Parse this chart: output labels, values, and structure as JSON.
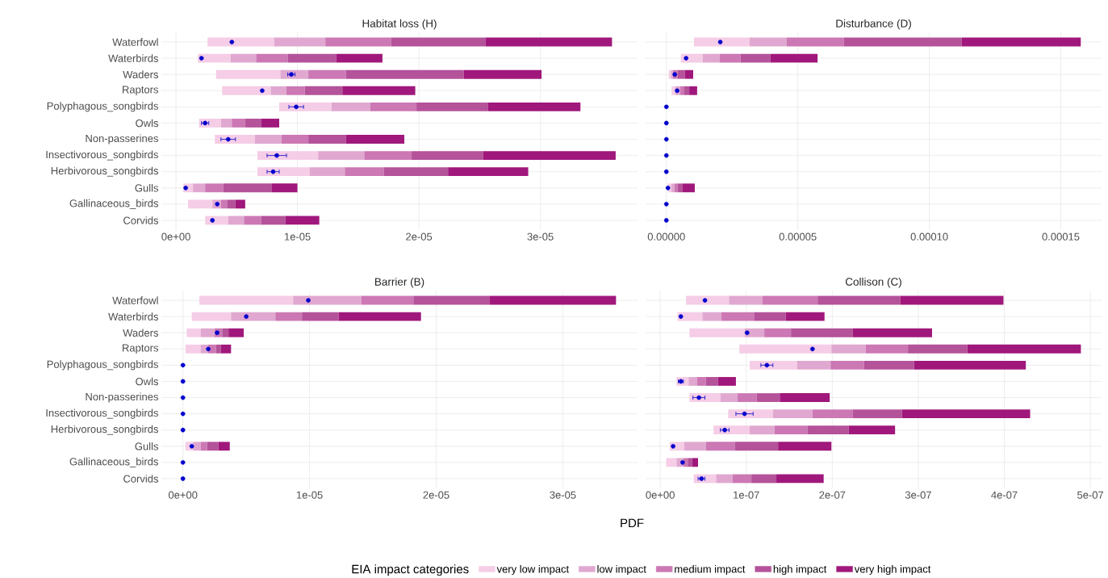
{
  "chart_data": [
    {
      "type": "bar",
      "title": "Habitat loss (H)",
      "orientation": "horizontal",
      "grid": true,
      "categories": [
        "Waterfowl",
        "Waterbirds",
        "Waders",
        "Raptors",
        "Polyphagous_songbirds",
        "Owls",
        "Non-passerines",
        "Insectivorous_songbirds",
        "Herbivorous_songbirds",
        "Gulls",
        "Gallinaceous_birds",
        "Corvids"
      ],
      "xlim": [
        -1.2e-06,
        3.8e-05
      ],
      "xticks": [
        {
          "value": 0,
          "label": "0e+00"
        },
        {
          "value": 1e-05,
          "label": "1e-05"
        },
        {
          "value": 2e-05,
          "label": "2e-05"
        },
        {
          "value": 3e-05,
          "label": "3e-05"
        }
      ],
      "series": [
        {
          "color": "#f5cde6",
          "base": [
            2.6e-06,
            1.8e-06,
            3.3e-06,
            3.8e-06,
            8.5e-06,
            1.9e-06,
            3.2e-06,
            6.7e-06,
            6.7e-06,
            6e-07,
            1e-06,
            2.4e-06
          ],
          "values": [
            5.5e-06,
            2.7e-06,
            5.3e-06,
            4e-06,
            4.3e-06,
            1.8e-06,
            3.3e-06,
            5e-06,
            4.3e-06,
            8e-07,
            2e-06,
            1.9e-06
          ]
        },
        {
          "color": "#e0a8d0",
          "base": [
            8.1e-06,
            4.5e-06,
            8.6e-06,
            7.8e-06,
            1.28e-05,
            3.7e-06,
            6.5e-06,
            1.17e-05,
            1.1e-05,
            1.4e-06,
            3e-06,
            4.3e-06
          ],
          "values": [
            4.2e-06,
            2.1e-06,
            2.3e-06,
            1.3e-06,
            3.2e-06,
            9e-07,
            2.2e-06,
            3.8e-06,
            2.9e-06,
            1e-06,
            7e-07,
            1.3e-06
          ]
        },
        {
          "color": "#cc78b4",
          "base": [
            1.23e-05,
            6.6e-06,
            1.09e-05,
            9.1e-06,
            1.6e-05,
            4.6e-06,
            8.7e-06,
            1.55e-05,
            1.39e-05,
            2.4e-06,
            3.7e-06,
            5.6e-06
          ],
          "values": [
            5.4e-06,
            2.6e-06,
            3.1e-06,
            1.5e-06,
            3.8e-06,
            1.1e-06,
            2.2e-06,
            3.9e-06,
            3.2e-06,
            1.5e-06,
            5e-07,
            1.4e-06
          ]
        },
        {
          "color": "#b4529a",
          "base": [
            1.77e-05,
            9.2e-06,
            1.4e-05,
            1.06e-05,
            1.98e-05,
            5.7e-06,
            1.09e-05,
            1.94e-05,
            1.71e-05,
            3.9e-06,
            4.2e-06,
            7e-06
          ],
          "values": [
            7.8e-06,
            4e-06,
            9.7e-06,
            3.1e-06,
            5.9e-06,
            1.3e-06,
            3.1e-06,
            5.9e-06,
            5.3e-06,
            4e-06,
            7e-07,
            2e-06
          ]
        },
        {
          "color": "#a0187c",
          "base": [
            2.55e-05,
            1.32e-05,
            2.37e-05,
            1.37e-05,
            2.57e-05,
            7e-06,
            1.4e-05,
            2.53e-05,
            2.24e-05,
            7.9e-06,
            4.9e-06,
            9e-06
          ],
          "values": [
            1.04e-05,
            3.8e-06,
            6.4e-06,
            6e-06,
            7.6e-06,
            1.5e-06,
            4.8e-06,
            1.09e-05,
            6.6e-06,
            2.1e-06,
            8e-07,
            2.8e-06
          ]
        },
        {
          "type": "scatter",
          "color": "#0000cc",
          "x": [
            "Waterfowl",
            "Waterbirds",
            "Waders",
            "Raptors",
            "Polyphagous_songbirds",
            "Owls",
            "Non-passerines",
            "Insectivorous_songbirds",
            "Herbivorous_songbirds",
            "Gulls",
            "Gallinaceous_birds",
            "Corvids"
          ],
          "values": [
            4.6e-06,
            2.1e-06,
            9.5e-06,
            7.1e-06,
            9.9e-06,
            2.4e-06,
            4.3e-06,
            8.3e-06,
            8e-06,
            8e-07,
            3.4e-06,
            3e-06
          ],
          "errors": [
            null,
            null,
            3e-07,
            null,
            6e-07,
            3e-07,
            6e-07,
            8e-07,
            5e-07,
            null,
            null,
            null
          ]
        }
      ]
    },
    {
      "type": "bar",
      "title": "Disturbance (D)",
      "orientation": "horizontal",
      "grid": true,
      "tick_labels": "x",
      "categories": [
        "Waterfowl",
        "Waterbirds",
        "Waders",
        "Raptors",
        "Polyphagous_songbirds",
        "Owls",
        "Non-passerines",
        "Insectivorous_songbirds",
        "Herbivorous_songbirds",
        "Gulls",
        "Gallinaceous_birds",
        "Corvids"
      ],
      "xlim": [
        -7.9e-06,
        0.0001655
      ],
      "xticks": [
        {
          "value": 0,
          "label": "0.00000"
        },
        {
          "value": 5e-05,
          "label": "0.00005"
        },
        {
          "value": 0.0001,
          "label": "0.00010"
        },
        {
          "value": 0.00015,
          "label": "0.00015"
        }
      ],
      "series": [
        {
          "color": "#f5cde6",
          "base": [
            1.05e-05,
            5.5e-06,
            9e-07,
            2e-06,
            null,
            null,
            null,
            null,
            null,
            6e-07,
            null,
            null
          ],
          "values": [
            2.11e-05,
            8.3e-06,
            8e-07,
            1.4e-06,
            null,
            null,
            null,
            null,
            null,
            1.3e-06,
            null,
            null
          ]
        },
        {
          "color": "#e0a8d0",
          "base": [
            3.16e-05,
            1.38e-05,
            1.7e-06,
            3.4e-06,
            null,
            null,
            null,
            null,
            null,
            1.9e-06,
            null,
            null
          ],
          "values": [
            1.41e-05,
            6.5e-06,
            8e-07,
            1.9e-06,
            null,
            null,
            null,
            null,
            null,
            1.2e-06,
            null,
            null
          ]
        },
        {
          "color": "#cc78b4",
          "base": [
            4.57e-05,
            2.03e-05,
            2.5e-06,
            5.3e-06,
            null,
            null,
            null,
            null,
            null,
            3.1e-06,
            null,
            null
          ],
          "values": [
            2.18e-05,
            7.9e-06,
            1.7e-06,
            1.3e-06,
            null,
            null,
            null,
            null,
            null,
            1.1e-06,
            null,
            null
          ]
        },
        {
          "color": "#b4529a",
          "base": [
            6.75e-05,
            2.82e-05,
            4.2e-06,
            6.6e-06,
            null,
            null,
            null,
            null,
            null,
            4.2e-06,
            null,
            null
          ],
          "values": [
            4.48e-05,
            1.14e-05,
            2.8e-06,
            2.1e-06,
            null,
            null,
            null,
            null,
            null,
            2e-06,
            null,
            null
          ]
        },
        {
          "color": "#a0187c",
          "base": [
            0.0001123,
            3.96e-05,
            7e-06,
            8.7e-06,
            null,
            null,
            null,
            null,
            null,
            6.2e-06,
            null,
            null
          ],
          "values": [
            4.53e-05,
            1.79e-05,
            3.2e-06,
            3e-06,
            null,
            null,
            null,
            null,
            null,
            4.6e-06,
            null,
            null
          ]
        },
        {
          "type": "scatter",
          "color": "#0000cc",
          "x": [
            "Waterfowl",
            "Waterbirds",
            "Waders",
            "Raptors",
            "Polyphagous_songbirds",
            "Owls",
            "Non-passerines",
            "Insectivorous_songbirds",
            "Herbivorous_songbirds",
            "Gulls",
            "Gallinaceous_birds",
            "Corvids"
          ],
          "values": [
            2.05e-05,
            7.5e-06,
            3.2e-06,
            4.1e-06,
            0,
            0,
            0,
            0,
            0,
            6e-07,
            0,
            0
          ]
        }
      ]
    },
    {
      "type": "bar",
      "title": "Barrier (B)",
      "orientation": "horizontal",
      "grid": true,
      "categories": [
        "Waterfowl",
        "Waterbirds",
        "Waders",
        "Raptors",
        "Polyphagous_songbirds",
        "Owls",
        "Non-passerines",
        "Insectivorous_songbirds",
        "Herbivorous_songbirds",
        "Gulls",
        "Gallinaceous_birds",
        "Corvids"
      ],
      "xlim": [
        -1.7e-06,
        3.59e-05
      ],
      "xticks": [
        {
          "value": 0,
          "label": "0e+00"
        },
        {
          "value": 1e-05,
          "label": "1e-05"
        },
        {
          "value": 2e-05,
          "label": "2e-05"
        },
        {
          "value": 3e-05,
          "label": "3e-05"
        }
      ],
      "series": [
        {
          "color": "#f5cde6",
          "base": [
            1.3e-06,
            7e-07,
            3e-07,
            2e-07,
            null,
            null,
            null,
            null,
            null,
            2e-07,
            null,
            null
          ],
          "values": [
            7.4e-06,
            3.1e-06,
            1.1e-06,
            1.2e-06,
            null,
            null,
            null,
            null,
            null,
            6e-07,
            null,
            null
          ]
        },
        {
          "color": "#e0a8d0",
          "base": [
            8.7e-06,
            3.8e-06,
            1.4e-06,
            1.4e-06,
            null,
            null,
            null,
            null,
            null,
            8e-07,
            null,
            null
          ],
          "values": [
            5.4e-06,
            3.5e-06,
            1.1e-06,
            6e-07,
            null,
            null,
            null,
            null,
            null,
            6e-07,
            null,
            null
          ]
        },
        {
          "color": "#cc78b4",
          "base": [
            1.41e-05,
            7.3e-06,
            2.5e-06,
            2e-06,
            null,
            null,
            null,
            null,
            null,
            1.4e-06,
            null,
            null
          ],
          "values": [
            4.1e-06,
            2.1e-06,
            6e-07,
            6e-07,
            null,
            null,
            null,
            null,
            null,
            5e-07,
            null,
            null
          ]
        },
        {
          "color": "#b4529a",
          "base": [
            1.82e-05,
            9.4e-06,
            3.1e-06,
            2.6e-06,
            null,
            null,
            null,
            null,
            null,
            1.9e-06,
            null,
            null
          ],
          "values": [
            6e-06,
            2.9e-06,
            5e-07,
            4e-07,
            null,
            null,
            null,
            null,
            null,
            9e-07,
            null,
            null
          ]
        },
        {
          "color": "#a0187c",
          "base": [
            2.42e-05,
            1.23e-05,
            3.6e-06,
            3e-06,
            null,
            null,
            null,
            null,
            null,
            2.8e-06,
            null,
            null
          ],
          "values": [
            1e-05,
            6.5e-06,
            1.2e-06,
            8e-07,
            null,
            null,
            null,
            null,
            null,
            9e-07,
            null,
            null
          ]
        },
        {
          "type": "scatter",
          "color": "#0000cc",
          "x": [
            "Waterfowl",
            "Waterbirds",
            "Waders",
            "Raptors",
            "Polyphagous_songbirds",
            "Owls",
            "Non-passerines",
            "Insectivorous_songbirds",
            "Herbivorous_songbirds",
            "Gulls",
            "Gallinaceous_birds",
            "Corvids"
          ],
          "values": [
            9.9e-06,
            5e-06,
            2.7e-06,
            2e-06,
            0,
            0,
            0,
            0,
            0,
            7e-07,
            0,
            0
          ]
        }
      ]
    },
    {
      "type": "bar",
      "title": "Collison (C)",
      "xlabel": "PDF",
      "orientation": "horizontal",
      "grid": true,
      "tick_labels": "x",
      "legend": "bottom",
      "legend_title": "EIA impact categories",
      "categories": [
        "Waterfowl",
        "Waterbirds",
        "Waders",
        "Raptors",
        "Polyphagous_songbirds",
        "Owls",
        "Non-passerines",
        "Insectivorous_songbirds",
        "Herbivorous_songbirds",
        "Gulls",
        "Gallinaceous_birds",
        "Corvids"
      ],
      "xlim": [
        -1.7e-08,
        5.13e-07
      ],
      "xticks": [
        {
          "value": 0,
          "label": "0e+00"
        },
        {
          "value": 1e-07,
          "label": "1e-07"
        },
        {
          "value": 2e-07,
          "label": "2e-07"
        },
        {
          "value": 3e-07,
          "label": "3e-07"
        },
        {
          "value": 4e-07,
          "label": "4e-07"
        },
        {
          "value": 5e-07,
          "label": "5e-07"
        }
      ],
      "series": [
        {
          "name": "very low impact",
          "color": "#f5cde6",
          "base": [
            3e-08,
            2e-08,
            3.4e-08,
            9.2e-08,
            1.04e-07,
            1.9e-08,
            3.4e-08,
            7.9e-08,
            6.2e-08,
            1.1e-08,
            7e-09,
            3.9e-08
          ],
          "values": [
            5e-08,
            2.9e-08,
            6.4e-08,
            1.07e-07,
            5.5e-08,
            1.4e-08,
            3.6e-08,
            5.2e-08,
            4.2e-08,
            1.7e-08,
            1.2e-08,
            2.6e-08
          ]
        },
        {
          "name": "low impact",
          "color": "#e0a8d0",
          "base": [
            8e-08,
            4.9e-08,
            9.8e-08,
            1.99e-07,
            1.59e-07,
            3.3e-08,
            7e-08,
            1.31e-07,
            1.04e-07,
            2.8e-08,
            1.9e-08,
            6.5e-08
          ],
          "values": [
            3.9e-08,
            2.2e-08,
            2.3e-08,
            4e-08,
            3.9e-08,
            1e-08,
            2e-08,
            4.6e-08,
            2.9e-08,
            2.5e-08,
            8e-09,
            1.9e-08
          ]
        },
        {
          "name": "medium impact",
          "color": "#cc78b4",
          "base": [
            1.19e-07,
            7.1e-08,
            1.21e-07,
            2.39e-07,
            1.98e-07,
            4.3e-08,
            9e-08,
            1.77e-07,
            1.33e-07,
            5.3e-08,
            2.7e-08,
            8.4e-08
          ],
          "values": [
            6.4e-08,
            3.8e-08,
            3.1e-08,
            4.9e-08,
            3.9e-08,
            1e-08,
            2.2e-08,
            4.7e-08,
            3.8e-08,
            3.4e-08,
            5e-09,
            2.2e-08
          ]
        },
        {
          "name": "high impact",
          "color": "#b4529a",
          "base": [
            1.83e-07,
            1.09e-07,
            1.52e-07,
            2.88e-07,
            2.37e-07,
            5.3e-08,
            1.12e-07,
            2.24e-07,
            1.71e-07,
            8.7e-08,
            3.2e-08,
            1.06e-07
          ],
          "values": [
            9.6e-08,
            3.7e-08,
            7.2e-08,
            6.9e-08,
            5.8e-08,
            1.4e-08,
            2.7e-08,
            5.7e-08,
            4.8e-08,
            5e-08,
            5e-09,
            2.9e-08
          ]
        },
        {
          "name": "very high impact",
          "color": "#a0187c",
          "base": [
            2.79e-07,
            1.46e-07,
            2.24e-07,
            3.57e-07,
            2.95e-07,
            6.7e-08,
            1.39e-07,
            2.81e-07,
            2.19e-07,
            1.37e-07,
            3.7e-08,
            1.35e-07
          ],
          "values": [
            1.2e-07,
            4.5e-08,
            9.2e-08,
            1.32e-07,
            1.3e-07,
            2.1e-08,
            5.8e-08,
            1.49e-07,
            5.4e-08,
            6.2e-08,
            7e-09,
            5.5e-08
          ]
        },
        {
          "type": "scatter",
          "color": "#0000cc",
          "x": [
            "Waterfowl",
            "Waterbirds",
            "Waders",
            "Raptors",
            "Polyphagous_songbirds",
            "Owls",
            "Non-passerines",
            "Insectivorous_songbirds",
            "Herbivorous_songbirds",
            "Gulls",
            "Gallinaceous_birds",
            "Corvids"
          ],
          "values": [
            5.2e-08,
            2.4e-08,
            1.01e-07,
            1.77e-07,
            1.24e-07,
            2.4e-08,
            4.5e-08,
            9.8e-08,
            7.5e-08,
            1.5e-08,
            2.6e-08,
            4.8e-08
          ],
          "errors": [
            null,
            null,
            null,
            null,
            7e-09,
            3e-09,
            7e-09,
            1e-08,
            5e-09,
            null,
            null,
            4e-09
          ]
        }
      ]
    }
  ]
}
